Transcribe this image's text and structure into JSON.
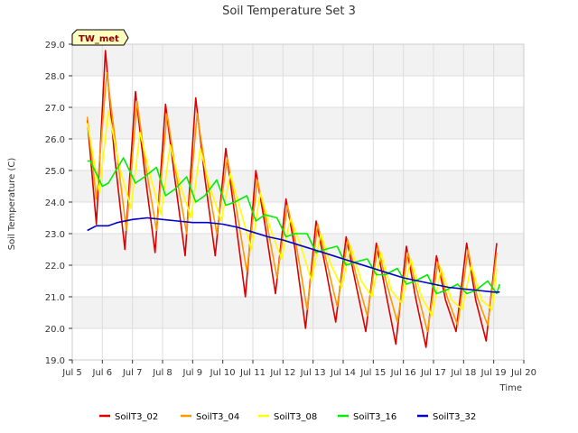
{
  "chart_data": {
    "type": "line",
    "title": "Soil Temperature Set 3",
    "xlabel": "Time",
    "ylabel": "Soil Temperature (C)",
    "badge": "TW_met",
    "xlim": [
      5,
      20
    ],
    "ylim": [
      19.0,
      29.0
    ],
    "x_ticks": [
      5,
      6,
      7,
      8,
      9,
      10,
      11,
      12,
      13,
      14,
      15,
      16,
      17,
      18,
      19,
      20
    ],
    "x_tick_labels": [
      "Jul 5",
      "Jul 6",
      "Jul 7",
      "Jul 8",
      "Jul 9",
      "Jul 10",
      "Jul 11",
      "Jul 12",
      "Jul 13",
      "Jul 14",
      "Jul 15",
      "Jul 16",
      "Jul 17",
      "Jul 18",
      "Jul 19",
      "Jul 20"
    ],
    "y_ticks": [
      19.0,
      20.0,
      21.0,
      22.0,
      23.0,
      24.0,
      25.0,
      26.0,
      27.0,
      28.0,
      29.0
    ],
    "y_tick_labels": [
      "19.0",
      "20.0",
      "21.0",
      "22.0",
      "23.0",
      "24.0",
      "25.0",
      "26.0",
      "27.0",
      "28.0",
      "29.0"
    ],
    "grid": true,
    "legend_position": "bottom",
    "series": [
      {
        "name": "SoilT3_02",
        "color": "#dd0000",
        "x": [
          5.5,
          5.8,
          6.1,
          6.4,
          6.75,
          7.1,
          7.4,
          7.75,
          8.1,
          8.4,
          8.75,
          9.1,
          9.4,
          9.75,
          10.1,
          10.4,
          10.75,
          11.1,
          11.4,
          11.75,
          12.1,
          12.4,
          12.75,
          13.1,
          13.4,
          13.75,
          14.1,
          14.4,
          14.75,
          15.1,
          15.4,
          15.75,
          16.1,
          16.4,
          16.75,
          17.1,
          17.4,
          17.75,
          18.1,
          18.4,
          18.75,
          19.1
        ],
        "y": [
          26.6,
          23.3,
          28.8,
          25.5,
          22.5,
          27.5,
          25.0,
          22.4,
          27.1,
          24.8,
          22.3,
          27.3,
          24.8,
          22.3,
          25.7,
          23.6,
          21.0,
          25.0,
          23.3,
          21.1,
          24.1,
          22.5,
          20.0,
          23.4,
          22.0,
          20.2,
          22.9,
          21.5,
          19.9,
          22.7,
          21.2,
          19.5,
          22.6,
          21.0,
          19.4,
          22.3,
          20.9,
          19.9,
          22.7,
          20.9,
          19.6,
          22.7
        ]
      },
      {
        "name": "SoilT3_04",
        "color": "#ff9900",
        "x": [
          5.5,
          5.8,
          6.15,
          6.45,
          6.8,
          7.15,
          7.45,
          7.8,
          8.15,
          8.45,
          8.8,
          9.15,
          9.45,
          9.8,
          10.15,
          10.45,
          10.8,
          11.15,
          11.45,
          11.8,
          12.15,
          12.45,
          12.8,
          13.15,
          13.45,
          13.8,
          14.15,
          14.45,
          14.8,
          15.15,
          15.45,
          15.8,
          16.15,
          16.45,
          16.8,
          17.15,
          17.45,
          17.8,
          18.15,
          18.45,
          18.8,
          19.1
        ],
        "y": [
          26.7,
          24.1,
          28.1,
          25.8,
          23.1,
          27.2,
          25.1,
          23.1,
          26.8,
          24.9,
          23.0,
          26.8,
          24.9,
          23.0,
          25.4,
          23.8,
          21.8,
          24.7,
          23.4,
          21.6,
          23.9,
          22.6,
          20.6,
          23.3,
          22.1,
          20.7,
          22.8,
          21.6,
          20.4,
          22.6,
          21.4,
          20.2,
          22.4,
          21.2,
          19.9,
          22.1,
          21.0,
          20.1,
          22.5,
          21.0,
          20.1,
          22.4
        ]
      },
      {
        "name": "SoilT3_08",
        "color": "#ffff00",
        "x": [
          5.5,
          5.9,
          6.2,
          6.6,
          6.95,
          7.25,
          7.6,
          7.95,
          8.25,
          8.6,
          8.95,
          9.25,
          9.6,
          9.95,
          10.25,
          10.6,
          10.95,
          11.25,
          11.6,
          11.95,
          12.25,
          12.6,
          12.95,
          13.25,
          13.6,
          13.95,
          14.25,
          14.6,
          14.95,
          15.25,
          15.6,
          15.95,
          16.25,
          16.6,
          16.95,
          17.25,
          17.6,
          17.95,
          18.25,
          18.6,
          18.95,
          19.1
        ],
        "y": [
          26.5,
          24.3,
          26.9,
          25.0,
          23.8,
          26.2,
          24.8,
          23.6,
          25.8,
          24.5,
          23.5,
          25.7,
          24.4,
          23.4,
          24.9,
          23.7,
          22.5,
          24.3,
          23.1,
          22.2,
          23.5,
          22.6,
          21.5,
          23.0,
          22.0,
          21.3,
          22.6,
          21.5,
          21.0,
          22.4,
          21.2,
          20.8,
          22.2,
          21.0,
          20.4,
          21.9,
          20.9,
          20.6,
          22.0,
          20.9,
          20.6,
          21.9
        ]
      },
      {
        "name": "SoilT3_16",
        "color": "#00ee00",
        "x": [
          5.5,
          5.6,
          6.0,
          6.2,
          6.7,
          7.1,
          7.4,
          7.8,
          8.1,
          8.4,
          8.8,
          9.1,
          9.4,
          9.8,
          10.1,
          10.4,
          10.8,
          11.1,
          11.4,
          11.8,
          12.1,
          12.4,
          12.8,
          13.1,
          13.4,
          13.8,
          14.1,
          14.4,
          14.8,
          15.1,
          15.4,
          15.8,
          16.1,
          16.4,
          16.8,
          17.1,
          17.4,
          17.8,
          18.1,
          18.4,
          18.8,
          19.1,
          19.2
        ],
        "y": [
          25.3,
          25.3,
          24.5,
          24.6,
          25.4,
          24.6,
          24.8,
          25.1,
          24.2,
          24.4,
          24.8,
          24.0,
          24.2,
          24.7,
          23.9,
          24.0,
          24.2,
          23.4,
          23.6,
          23.5,
          22.9,
          23.0,
          23.0,
          22.4,
          22.5,
          22.6,
          22.0,
          22.1,
          22.2,
          21.7,
          21.7,
          21.9,
          21.4,
          21.5,
          21.7,
          21.1,
          21.2,
          21.4,
          21.1,
          21.2,
          21.5,
          21.1,
          21.4
        ]
      },
      {
        "name": "SoilT3_32",
        "color": "#0000cc",
        "x": [
          5.5,
          5.8,
          6.2,
          6.5,
          7.0,
          7.5,
          8.0,
          8.5,
          9.0,
          9.5,
          10.0,
          10.5,
          11.0,
          11.5,
          12.0,
          12.5,
          13.0,
          13.5,
          14.0,
          14.5,
          15.0,
          15.5,
          16.0,
          16.5,
          17.0,
          17.5,
          18.0,
          18.5,
          19.0,
          19.2
        ],
        "y": [
          23.1,
          23.25,
          23.25,
          23.35,
          23.45,
          23.5,
          23.45,
          23.4,
          23.35,
          23.35,
          23.3,
          23.2,
          23.05,
          22.9,
          22.8,
          22.65,
          22.5,
          22.35,
          22.2,
          22.05,
          21.9,
          21.75,
          21.6,
          21.5,
          21.4,
          21.3,
          21.25,
          21.2,
          21.15,
          21.15
        ]
      }
    ]
  }
}
